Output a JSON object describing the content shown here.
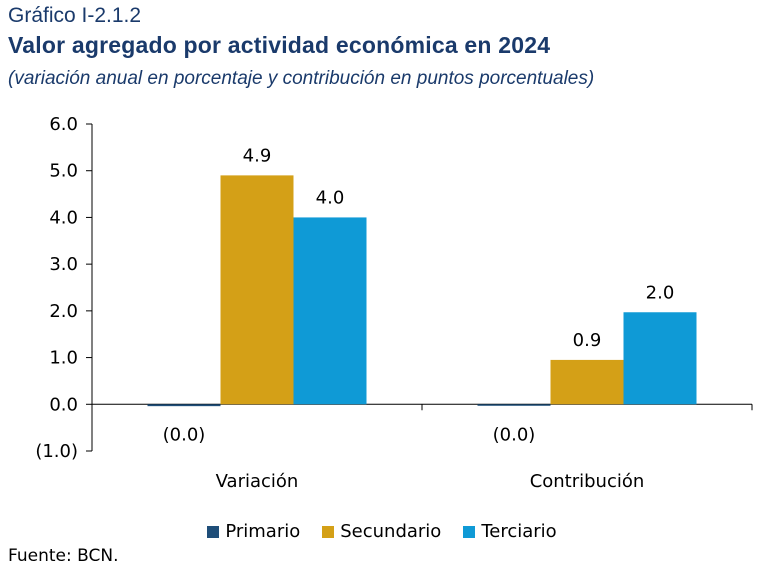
{
  "header": {
    "kicker": "Gráfico I-2.1.2",
    "title": "Valor agregado por actividad económica en 2024",
    "subtitle": "(variación anual en porcentaje y contribución en puntos porcentuales)"
  },
  "source": "Fuente: BCN.",
  "colors": {
    "Primario": "#1f4e79",
    "Secundario": "#d4a017",
    "Terciario": "#0f9ad6",
    "axis": "#000000"
  },
  "chart_data": {
    "type": "bar",
    "categories": [
      "Variación",
      "Contribución"
    ],
    "series": [
      {
        "name": "Primario",
        "values": [
          -0.04,
          -0.02
        ],
        "labels": [
          "(0.0)",
          "(0.0)"
        ]
      },
      {
        "name": "Secundario",
        "values": [
          4.9,
          0.95
        ],
        "labels": [
          "4.9",
          "0.9"
        ]
      },
      {
        "name": "Terciario",
        "values": [
          4.0,
          1.97
        ],
        "labels": [
          "4.0",
          "2.0"
        ]
      }
    ],
    "yticks": [
      "6.0",
      "5.0",
      "4.0",
      "3.0",
      "2.0",
      "1.0",
      "0.0",
      "(1.0)"
    ],
    "ylim": [
      -1,
      6
    ],
    "legend_position": "bottom",
    "grid": false
  }
}
